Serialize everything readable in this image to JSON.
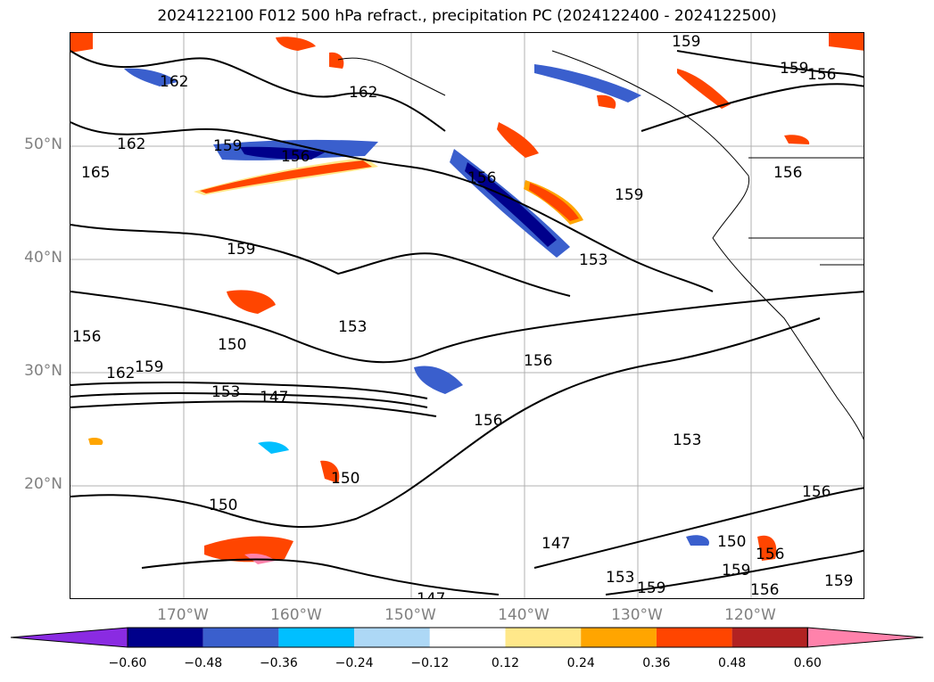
{
  "title": "2024122100 F012 500 hPa refract., precipitation PC (2024122400 - 2024122500)",
  "lat_labels": [
    "50°N",
    "40°N",
    "30°N",
    "20°N"
  ],
  "lon_labels": [
    "170°W",
    "160°W",
    "150°W",
    "140°W",
    "130°W",
    "120°W"
  ],
  "colorbar": {
    "ticks": [
      "−0.60",
      "−0.48",
      "−0.36",
      "−0.24",
      "−0.12",
      "0.12",
      "0.24",
      "0.36",
      "0.48",
      "0.60"
    ],
    "colors": [
      "#8a2be2",
      "#00008b",
      "#3a5fcd",
      "#00bfff",
      "#add8f6",
      "#ffffff",
      "#ffe88a",
      "#ffa500",
      "#ff4500",
      "#b22222",
      "#ff82ab"
    ]
  },
  "contour_labels": [
    "162",
    "162",
    "162",
    "165",
    "159",
    "156",
    "159",
    "156",
    "159",
    "156",
    "159",
    "156",
    "159",
    "153",
    "156",
    "153",
    "150",
    "159",
    "162",
    "153",
    "147",
    "156",
    "156",
    "153",
    "150",
    "150",
    "147",
    "153",
    "159",
    "150",
    "156",
    "159",
    "147",
    "156",
    "156",
    "159"
  ]
}
